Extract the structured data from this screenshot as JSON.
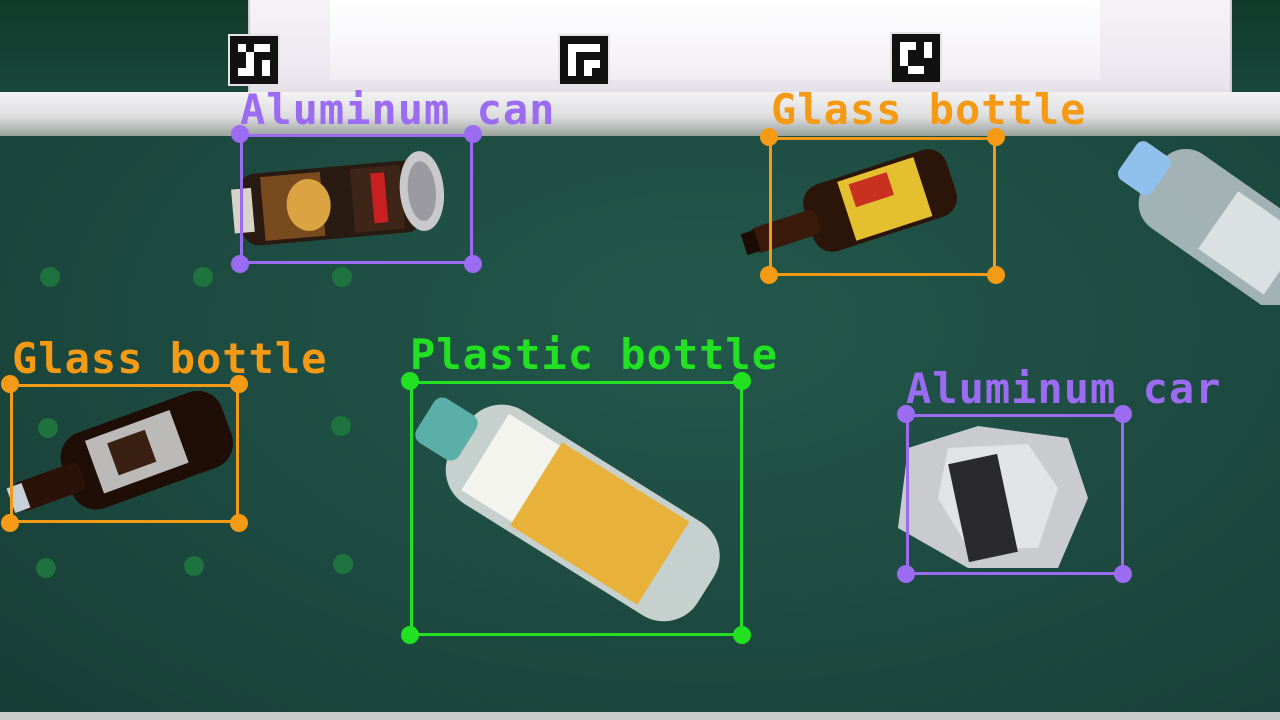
{
  "detections": [
    {
      "label": "Aluminum can",
      "color": "#9b6bf2"
    },
    {
      "label": "Glass bottle",
      "color": "#f59a14"
    },
    {
      "label": "Glass bottle",
      "color": "#f59a14"
    },
    {
      "label": "Plastic bottle",
      "color": "#22e022"
    },
    {
      "label": "Aluminum car",
      "color": "#9b6bf2"
    }
  ],
  "scene": {
    "belt_color": "#1e4a40",
    "fiducial_markers": [
      "marker-left",
      "marker-center",
      "marker-right"
    ]
  }
}
